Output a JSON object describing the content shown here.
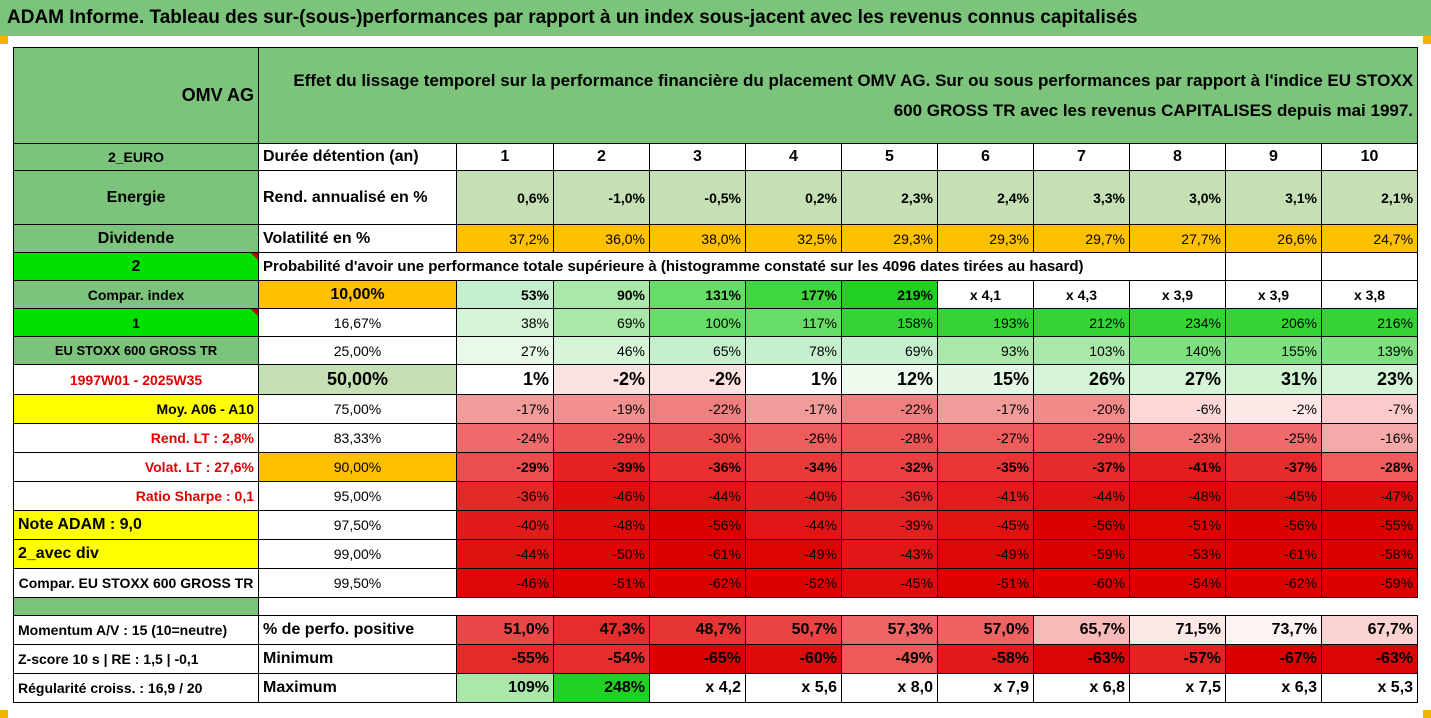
{
  "title": "ADAM Informe. Tableau des sur-(sous-)performances par rapport à un index sous-jacent avec les revenus connus capitalisés",
  "colors": {
    "green_header": "#7cc37b",
    "bright_green": "#00e000",
    "yellow": "#ffff00",
    "orange": "#ffc000",
    "red_text": "#e00000"
  },
  "header": {
    "company": "OMV AG",
    "description": "Effet du lissage temporel sur la performance financière du placement OMV AG. Sur ou sous performances par rapport à l'indice EU STOXX 600 GROSS TR avec les revenus CAPITALISES depuis mai 1997."
  },
  "side": {
    "currency": "2_EURO",
    "sector": "Energie",
    "dividend": "Dividende",
    "num2": "2",
    "compar_index": "Compar. index",
    "num1": "1",
    "index_name": "EU STOXX 600 GROSS TR",
    "period": "1997W01 - 2025W35",
    "moy": "Moy. A06 - A10",
    "rend_lt": "Rend. LT :   2,8%",
    "volat_lt": "Volat. LT :   27,6%",
    "sharpe": "Ratio Sharpe :   0,1",
    "note": "Note ADAM : 9,0",
    "avec_div": "2_avec div",
    "compar_full": "Compar. EU STOXX 600 GROSS TR",
    "momentum": "Momentum A/V : 15 (10=neutre)",
    "zscore": "Z-score 10 s  | RE : 1,5  | -0,1",
    "regularite": "Régularité croiss. : 16,9 / 20"
  },
  "labels": {
    "duree": "Durée détention (an)",
    "rend": "Rend. annualisé en %",
    "vol": "Volatilité en %",
    "prob": "Probabilité d'avoir une performance totale supérieure à (histogramme constaté sur les 4096 dates tirées au hasard)",
    "perf_pos": "% de perfo. positive",
    "minimum": "Minimum",
    "maximum": "Maximum"
  },
  "years": [
    "1",
    "2",
    "3",
    "4",
    "5",
    "6",
    "7",
    "8",
    "9",
    "10"
  ],
  "rend": [
    "0,6%",
    "-1,0%",
    "-0,5%",
    "0,2%",
    "2,3%",
    "2,4%",
    "3,3%",
    "3,0%",
    "3,1%",
    "2,1%"
  ],
  "vol": [
    "37,2%",
    "36,0%",
    "38,0%",
    "32,5%",
    "29,3%",
    "29,3%",
    "29,7%",
    "27,7%",
    "26,6%",
    "24,7%"
  ],
  "percentiles": [
    {
      "p": "10,00%",
      "v": [
        "53%",
        "90%",
        "131%",
        "177%",
        "219%",
        "x 4,1",
        "x 4,3",
        "x 3,9",
        "x 3,9",
        "x 3,8"
      ]
    },
    {
      "p": "16,67%",
      "v": [
        "38%",
        "69%",
        "100%",
        "117%",
        "158%",
        "193%",
        "212%",
        "234%",
        "206%",
        "216%"
      ]
    },
    {
      "p": "25,00%",
      "v": [
        "27%",
        "46%",
        "65%",
        "78%",
        "69%",
        "93%",
        "103%",
        "140%",
        "155%",
        "139%"
      ]
    },
    {
      "p": "50,00%",
      "v": [
        "1%",
        "-2%",
        "-2%",
        "1%",
        "12%",
        "15%",
        "26%",
        "27%",
        "31%",
        "23%"
      ]
    },
    {
      "p": "75,00%",
      "v": [
        "-17%",
        "-19%",
        "-22%",
        "-17%",
        "-22%",
        "-17%",
        "-20%",
        "-6%",
        "-2%",
        "-7%"
      ]
    },
    {
      "p": "83,33%",
      "v": [
        "-24%",
        "-29%",
        "-30%",
        "-26%",
        "-28%",
        "-27%",
        "-29%",
        "-23%",
        "-25%",
        "-16%"
      ]
    },
    {
      "p": "90,00%",
      "v": [
        "-29%",
        "-39%",
        "-36%",
        "-34%",
        "-32%",
        "-35%",
        "-37%",
        "-41%",
        "-37%",
        "-28%"
      ]
    },
    {
      "p": "95,00%",
      "v": [
        "-36%",
        "-46%",
        "-44%",
        "-40%",
        "-36%",
        "-41%",
        "-44%",
        "-48%",
        "-45%",
        "-47%"
      ]
    },
    {
      "p": "97,50%",
      "v": [
        "-40%",
        "-48%",
        "-56%",
        "-44%",
        "-39%",
        "-45%",
        "-56%",
        "-51%",
        "-56%",
        "-55%"
      ]
    },
    {
      "p": "99,00%",
      "v": [
        "-44%",
        "-50%",
        "-61%",
        "-49%",
        "-43%",
        "-49%",
        "-59%",
        "-53%",
        "-61%",
        "-58%"
      ]
    },
    {
      "p": "99,50%",
      "v": [
        "-46%",
        "-51%",
        "-62%",
        "-52%",
        "-45%",
        "-51%",
        "-60%",
        "-54%",
        "-62%",
        "-59%"
      ]
    }
  ],
  "perf_pos": [
    "51,0%",
    "47,3%",
    "48,7%",
    "50,7%",
    "57,3%",
    "57,0%",
    "65,7%",
    "71,5%",
    "73,7%",
    "67,7%"
  ],
  "minimum": [
    "-55%",
    "-54%",
    "-65%",
    "-60%",
    "-49%",
    "-58%",
    "-63%",
    "-57%",
    "-67%",
    "-63%"
  ],
  "maximum": [
    "109%",
    "248%",
    "x 4,2",
    "x 5,6",
    "x 8,0",
    "x 7,9",
    "x 6,8",
    "x 7,5",
    "x 6,3",
    "x 5,3"
  ]
}
